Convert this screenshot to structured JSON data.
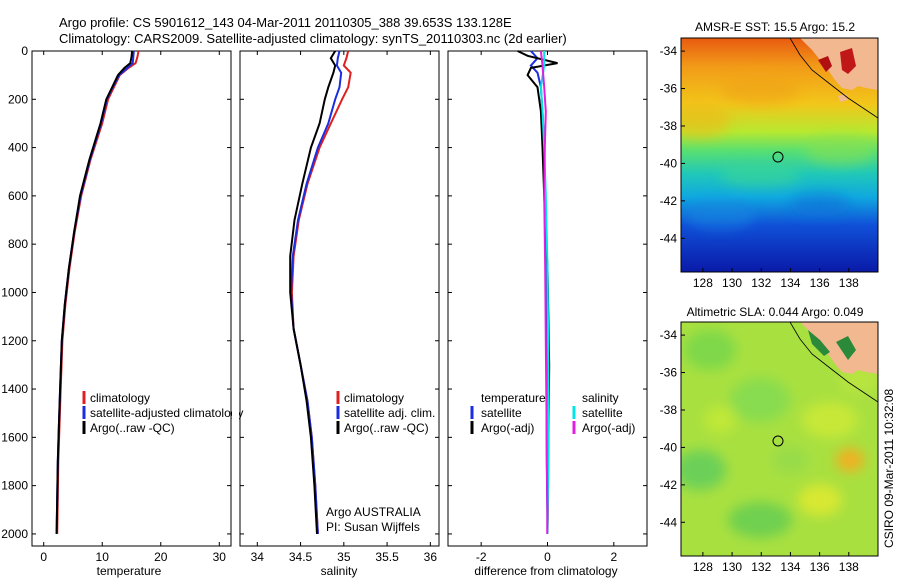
{
  "header": {
    "line1": "Argo profile: CS 5901612_143 04-Mar-2011 20110305_388 39.653S 133.128E",
    "line2": "Climatology: CARS2009. Satellite-adjusted climatology: synTS_20110303.nc (2d earlier)"
  },
  "colors": {
    "climatology": "#e02020",
    "satellite": "#1a2ee0",
    "argo": "#000000",
    "sat_sal": "#00e5e5",
    "argo_sal": "#e020e0"
  },
  "side_text": "CSIRO 09-Mar-2011 10:32:08",
  "chart_data": [
    {
      "id": "temperature",
      "type": "line",
      "xlabel": "temperature",
      "xlim": [
        -2,
        32
      ],
      "xticks": [
        0,
        10,
        20,
        30
      ],
      "ylim": [
        2050,
        0
      ],
      "yticks": [
        0,
        200,
        400,
        600,
        800,
        1000,
        1200,
        1400,
        1600,
        1800,
        2000
      ],
      "series": [
        {
          "name": "climatology",
          "color_key": "climatology",
          "x": [
            16.2,
            16,
            15.7,
            14.5,
            13,
            12,
            11,
            10,
            8,
            6.4,
            5.3,
            4.4,
            3.7,
            3.2,
            2.9,
            2.7,
            2.5,
            2.4,
            2.3
          ],
          "y": [
            0,
            25,
            50,
            70,
            100,
            150,
            200,
            300,
            450,
            600,
            750,
            900,
            1050,
            1200,
            1400,
            1550,
            1700,
            1850,
            2000
          ]
        },
        {
          "name": "satellite-adjusted climatology",
          "color_key": "satellite",
          "x": [
            15.4,
            15.3,
            15.2,
            14.3,
            12.9,
            11.8,
            10.8,
            9.8,
            7.9,
            6.3,
            5.2,
            4.3,
            3.6,
            3.1,
            2.8,
            2.6,
            2.4,
            2.3,
            2.2
          ],
          "y": [
            0,
            25,
            50,
            70,
            100,
            150,
            200,
            300,
            450,
            600,
            750,
            900,
            1050,
            1200,
            1400,
            1550,
            1700,
            1850,
            2000
          ]
        },
        {
          "name": "Argo(..raw -QC)",
          "color_key": "argo",
          "x": [
            15.1,
            15,
            14.8,
            13.8,
            12.7,
            11.7,
            10.7,
            9.7,
            7.8,
            6.2,
            5.2,
            4.3,
            3.6,
            3.1,
            2.8,
            2.6,
            2.4,
            2.3,
            2.2
          ],
          "y": [
            0,
            25,
            50,
            70,
            100,
            150,
            200,
            300,
            450,
            600,
            750,
            900,
            1050,
            1200,
            1400,
            1550,
            1700,
            1850,
            2000
          ]
        }
      ],
      "legend": {
        "items": [
          "climatology",
          "satellite-adjusted climatology",
          "Argo(..raw -QC)"
        ]
      }
    },
    {
      "id": "salinity",
      "type": "line",
      "xlabel": "salinity",
      "xlim": [
        33.8,
        36.1
      ],
      "xticks": [
        34,
        34.5,
        35,
        35.5,
        36
      ],
      "ylim": [
        2050,
        0
      ],
      "series": [
        {
          "name": "climatology",
          "color_key": "climatology",
          "x": [
            35.05,
            35.03,
            35.0,
            35.08,
            35.05,
            34.98,
            34.85,
            34.72,
            34.58,
            34.48,
            34.42,
            34.4,
            34.42,
            34.5,
            34.58,
            34.63,
            34.67,
            34.7
          ],
          "y": [
            0,
            30,
            60,
            90,
            150,
            200,
            300,
            400,
            550,
            700,
            850,
            1000,
            1150,
            1300,
            1450,
            1600,
            1800,
            2000
          ]
        },
        {
          "name": "satellite adj. clim.",
          "color_key": "satellite",
          "x": [
            34.95,
            34.93,
            34.92,
            34.97,
            34.95,
            34.9,
            34.82,
            34.7,
            34.57,
            34.47,
            34.41,
            34.39,
            34.42,
            34.5,
            34.58,
            34.63,
            34.67,
            34.7
          ],
          "y": [
            0,
            30,
            60,
            90,
            150,
            200,
            300,
            400,
            550,
            700,
            850,
            1000,
            1150,
            1300,
            1450,
            1600,
            1800,
            2000
          ]
        },
        {
          "name": "Argo(..raw -QC)",
          "color_key": "argo",
          "x": [
            34.9,
            34.85,
            34.9,
            34.88,
            34.82,
            34.78,
            34.72,
            34.62,
            34.52,
            34.43,
            34.38,
            34.38,
            34.42,
            34.5,
            34.57,
            34.62,
            34.66,
            34.69
          ],
          "y": [
            0,
            30,
            60,
            90,
            150,
            200,
            300,
            400,
            550,
            700,
            850,
            1000,
            1150,
            1300,
            1450,
            1600,
            1800,
            2000
          ]
        }
      ],
      "legend": {
        "items": [
          "climatology",
          "satellite adj. clim.",
          "Argo(..raw -QC)"
        ]
      },
      "annotation": [
        "Argo AUSTRALIA",
        "PI: Susan Wijffels"
      ]
    },
    {
      "id": "difference",
      "type": "line",
      "xlabel": "difference from climatology",
      "xlim": [
        -3,
        3
      ],
      "xticks": [
        -2,
        0,
        2
      ],
      "ylim": [
        2050,
        0
      ],
      "series": [
        {
          "name": "satellite (temperature)",
          "color_key": "satellite",
          "x": [
            -0.5,
            -0.3,
            -0.5,
            -0.3,
            -0.2,
            -0.15,
            -0.1,
            -0.08,
            -0.05,
            -0.03,
            -0.02,
            0
          ],
          "y": [
            0,
            30,
            60,
            90,
            150,
            250,
            400,
            600,
            900,
            1300,
            1700,
            2000
          ]
        },
        {
          "name": "Argo(-adj) (temperature)",
          "color_key": "argo",
          "x": [
            -0.9,
            -0.6,
            0.3,
            -0.5,
            -0.6,
            -0.3,
            -0.2,
            -0.15,
            -0.1,
            0,
            0.05,
            0
          ],
          "y": [
            0,
            20,
            50,
            70,
            100,
            150,
            250,
            400,
            600,
            900,
            1300,
            2000
          ]
        },
        {
          "name": "satellite (salinity)",
          "color_key": "sat_sal",
          "x": [
            -0.1,
            -0.1,
            -0.2,
            -0.15,
            -0.1,
            -0.05,
            0,
            0.02,
            0.03,
            0.02,
            0
          ],
          "y": [
            0,
            60,
            150,
            250,
            400,
            600,
            900,
            1200,
            1500,
            1800,
            2000
          ]
        },
        {
          "name": "Argo(-adj) (salinity)",
          "color_key": "argo_sal",
          "x": [
            -0.2,
            -0.15,
            -0.1,
            -0.05,
            -0.08,
            -0.1,
            -0.07,
            -0.05,
            -0.03,
            -0.02,
            0,
            -0.01
          ],
          "y": [
            0,
            60,
            150,
            250,
            400,
            600,
            900,
            1200,
            1500,
            1700,
            1900,
            2000
          ]
        }
      ],
      "legend": {
        "temperature_title": "temperature",
        "salinity_title": "salinity",
        "temperature_items": [
          "satellite",
          "Argo(-adj)"
        ],
        "salinity_items": [
          "satellite",
          "Argo(-adj)"
        ]
      }
    },
    {
      "id": "sst_map",
      "type": "heatmap",
      "title": "AMSR-E SST: 15.5 Argo: 15.2",
      "xticks": [
        128,
        130,
        132,
        134,
        136,
        138
      ],
      "yticks": [
        -34,
        -36,
        -38,
        -40,
        -42,
        -44
      ],
      "xlim": [
        126.5,
        140
      ],
      "ylim": [
        -45.8,
        -33.3
      ],
      "marker": {
        "lon": 133.128,
        "lat": -39.653
      }
    },
    {
      "id": "sla_map",
      "type": "heatmap",
      "title": "Altimetric SLA: 0.044 Argo: 0.049",
      "xticks": [
        128,
        130,
        132,
        134,
        136,
        138
      ],
      "yticks": [
        -34,
        -36,
        -38,
        -40,
        -42,
        -44
      ],
      "xlim": [
        126.5,
        140
      ],
      "ylim": [
        -45.8,
        -33.3
      ],
      "marker": {
        "lon": 133.128,
        "lat": -39.653
      }
    }
  ]
}
